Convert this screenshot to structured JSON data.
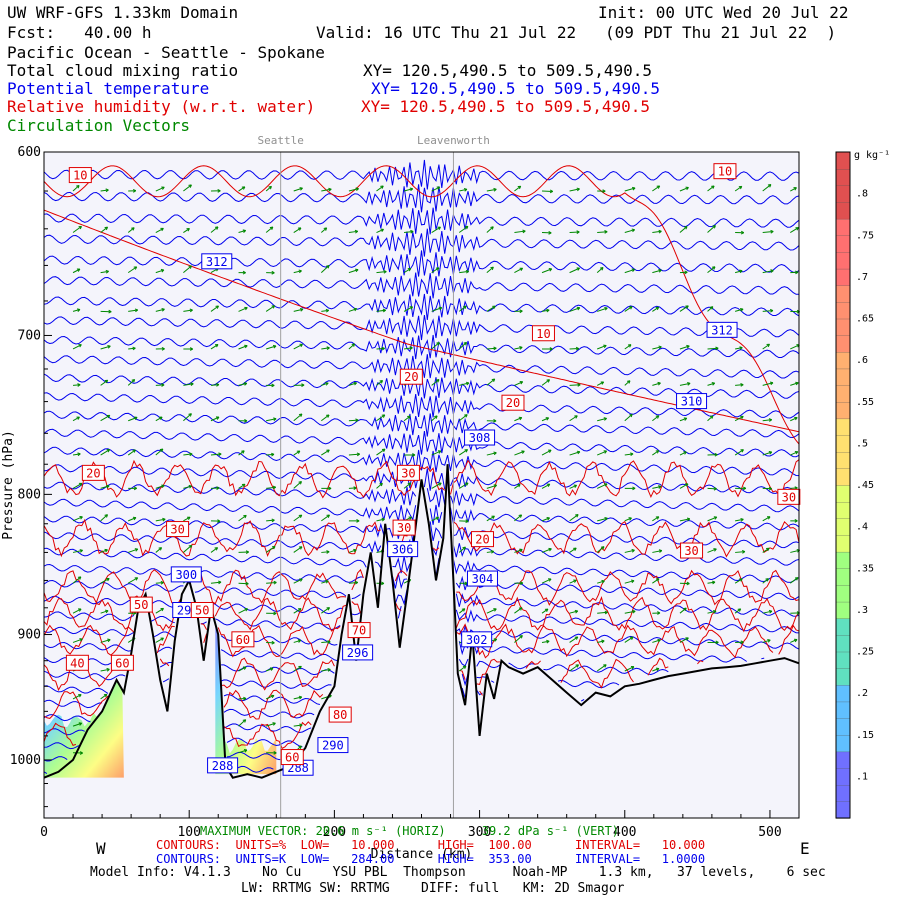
{
  "header": {
    "title": "UW WRF-GFS 1.33km Domain",
    "init": "Init: 00 UTC Wed 20 Jul 22",
    "fcst": "Fcst:   40.00 h",
    "valid": "Valid: 16 UTC Thu 21 Jul 22   (09 PDT Thu 21 Jul 22  )",
    "region": "Pacific Ocean - Seattle - Spokane",
    "var1": "Total cloud mixing ratio",
    "var1_xy": "XY= 120.5,490.5 to 509.5,490.5",
    "var2": "Potential temperature",
    "var2_xy": "XY= 120.5,490.5 to 509.5,490.5",
    "var3": "Relative humidity (w.r.t. water)",
    "var3_xy": "XY= 120.5,490.5 to 509.5,490.5",
    "var4": "Circulation Vectors"
  },
  "footer": {
    "maxvec": "MAXIMUM VECTOR: 20.6 m s⁻¹ (HORIZ)     39.2 dPa s⁻¹ (VERT)",
    "contours_rh": "CONTOURS:  UNITS=%  LOW=   10.000      HIGH=  100.00      INTERVAL=   10.000",
    "contours_th": "CONTOURS:  UNITS=K  LOW=   284.00      HIGH=  353.00      INTERVAL=   1.0000",
    "west": "W",
    "east": "E",
    "model_info": "Model Info: V4.1.3    No Cu    YSU PBL  Thompson      Noah-MP    1.3 km,   37 levels,    6 sec",
    "model_info2": "LW: RRTMG SW: RRTMG    DIFF: full   KM: 2D Smagor"
  },
  "colors": {
    "theta": "#0000ee",
    "rh": "#e00000",
    "vectors": "#008800",
    "terrain": "#000000",
    "plot_bg": "#f4f4fb"
  },
  "chart_data": {
    "type": "cross-section",
    "xlabel": "Distance (km)",
    "ylabel": "Pressure (hPa)",
    "xlim": [
      0,
      520
    ],
    "ylim": [
      1050,
      600
    ],
    "y_log": true,
    "x_ticks": [
      0,
      100,
      200,
      300,
      400,
      500
    ],
    "y_ticks": [
      600,
      700,
      800,
      900,
      1000
    ],
    "grid": false,
    "locations": [
      {
        "name": "Seattle",
        "x": 163
      },
      {
        "name": "Leavenworth",
        "x": 282
      }
    ],
    "terrain": {
      "x": [
        0,
        10,
        20,
        30,
        40,
        50,
        55,
        60,
        65,
        70,
        75,
        80,
        85,
        90,
        95,
        100,
        105,
        110,
        115,
        120,
        125,
        130,
        140,
        150,
        160,
        170,
        180,
        190,
        200,
        205,
        210,
        215,
        220,
        225,
        230,
        235,
        240,
        245,
        250,
        255,
        260,
        265,
        270,
        275,
        278,
        282,
        285,
        290,
        295,
        300,
        305,
        310,
        315,
        320,
        330,
        340,
        350,
        360,
        370,
        380,
        390,
        400,
        410,
        420,
        430,
        440,
        450,
        460,
        470,
        480,
        490,
        500,
        510,
        520
      ],
      "p": [
        1015,
        1010,
        1000,
        975,
        960,
        935,
        945,
        915,
        880,
        870,
        900,
        935,
        960,
        905,
        870,
        860,
        880,
        920,
        880,
        900,
        1005,
        1015,
        1012,
        1015,
        1010,
        1005,
        990,
        960,
        940,
        900,
        870,
        920,
        870,
        840,
        880,
        820,
        860,
        910,
        870,
        830,
        790,
        820,
        860,
        830,
        780,
        860,
        930,
        955,
        900,
        980,
        930,
        950,
        920,
        925,
        930,
        925,
        935,
        945,
        955,
        945,
        948,
        940,
        938,
        935,
        932,
        930,
        928,
        926,
        925,
        924,
        922,
        920,
        918,
        922
      ]
    },
    "theta_contours": {
      "units": "K",
      "low": 284,
      "high": 353,
      "interval": 1,
      "labels": [
        {
          "value": "312",
          "x": 119,
          "p": 658
        },
        {
          "value": "312",
          "x": 467,
          "p": 697
        },
        {
          "value": "310",
          "x": 446,
          "p": 740
        },
        {
          "value": "308",
          "x": 300,
          "p": 763
        },
        {
          "value": "306",
          "x": 247,
          "p": 838
        },
        {
          "value": "304",
          "x": 302,
          "p": 859
        },
        {
          "value": "302",
          "x": 298,
          "p": 904
        },
        {
          "value": "300",
          "x": 98,
          "p": 856
        },
        {
          "value": "298",
          "x": 99,
          "p": 882
        },
        {
          "value": "296",
          "x": 216,
          "p": 914
        },
        {
          "value": "290",
          "x": 199,
          "p": 988
        },
        {
          "value": "288",
          "x": 123,
          "p": 1005
        },
        {
          "value": "288",
          "x": 175,
          "p": 1007
        }
      ]
    },
    "rh_contours": {
      "units": "%",
      "low": 10,
      "high": 100,
      "interval": 10,
      "labels": [
        {
          "value": "10",
          "x": 25,
          "p": 612
        },
        {
          "value": "10",
          "x": 469,
          "p": 610
        },
        {
          "value": "10",
          "x": 344,
          "p": 699
        },
        {
          "value": "20",
          "x": 253,
          "p": 725
        },
        {
          "value": "20",
          "x": 323,
          "p": 741
        },
        {
          "value": "20",
          "x": 34,
          "p": 786
        },
        {
          "value": "20",
          "x": 302,
          "p": 831
        },
        {
          "value": "30",
          "x": 251,
          "p": 786
        },
        {
          "value": "30",
          "x": 92,
          "p": 824
        },
        {
          "value": "30",
          "x": 513,
          "p": 802
        },
        {
          "value": "30",
          "x": 446,
          "p": 839
        },
        {
          "value": "30",
          "x": 248,
          "p": 823
        },
        {
          "value": "50",
          "x": 67,
          "p": 878
        },
        {
          "value": "50",
          "x": 109,
          "p": 882
        },
        {
          "value": "40",
          "x": 23,
          "p": 922
        },
        {
          "value": "60",
          "x": 54,
          "p": 922
        },
        {
          "value": "60",
          "x": 137,
          "p": 904
        },
        {
          "value": "70",
          "x": 217,
          "p": 897
        },
        {
          "value": "80",
          "x": 204,
          "p": 963
        },
        {
          "value": "60",
          "x": 171,
          "p": 998
        }
      ]
    },
    "vectors": {
      "max_horiz": 20.6,
      "max_horiz_units": "m s⁻¹",
      "max_vert": 39.2,
      "max_vert_units": "dPa s⁻¹"
    },
    "colorbar": {
      "units": "g kg⁻¹",
      "min": 0.05,
      "max": 0.85,
      "labels": [
        ".8",
        ".75",
        ".7",
        ".65",
        ".6",
        ".55",
        ".5",
        ".45",
        ".4",
        ".35",
        ".3",
        ".25",
        ".2",
        ".15",
        ".1"
      ],
      "values": [
        0.8,
        0.75,
        0.7,
        0.65,
        0.6,
        0.55,
        0.5,
        0.45,
        0.4,
        0.35,
        0.3,
        0.25,
        0.2,
        0.15,
        0.1
      ]
    },
    "cloud_patches": [
      {
        "x0": 0,
        "x1": 55,
        "p_top": 965,
        "p_bot": 1015
      },
      {
        "x0": 118,
        "x1": 160,
        "p_top": 985,
        "p_bot": 1012
      }
    ]
  }
}
